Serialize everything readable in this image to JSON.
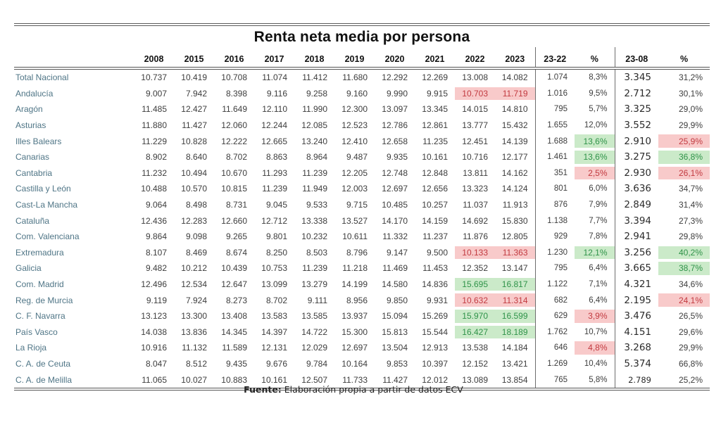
{
  "title": "Renta neta media por persona",
  "footer": {
    "label": "Fuente:",
    "text": " Elaboración propia a partir de datos ECV"
  },
  "colors": {
    "label_text": "#4f7586",
    "highlight_red_bg": "#f8caca",
    "highlight_red_text": "#c23a40",
    "highlight_green_bg": "#cbeac9",
    "highlight_green_text": "#2f9349"
  },
  "chart_data": {
    "type": "table",
    "columns": [
      "",
      "2008",
      "2015",
      "2016",
      "2017",
      "2018",
      "2019",
      "2020",
      "2021",
      "2022",
      "2023",
      "23-22",
      "%",
      "23-08",
      "%"
    ],
    "rows": [
      {
        "label": "Total Nacional",
        "years": [
          "10.737",
          "10.419",
          "10.708",
          "11.074",
          "11.412",
          "11.680",
          "12.292",
          "12.269",
          "13.008",
          "14.082"
        ],
        "diff_23_22": "1.074",
        "pct_23_22": "8,3%",
        "diff_23_08": "3.345",
        "pct_23_08": "31,2%",
        "hl_years": null,
        "hl_pct1": null,
        "hl_pct2": null,
        "small_23_08": false
      },
      {
        "label": "Andalucía",
        "years": [
          "9.007",
          "7.942",
          "8.398",
          "9.116",
          "9.258",
          "9.160",
          "9.990",
          "9.915",
          "10.703",
          "11.719"
        ],
        "diff_23_22": "1.016",
        "pct_23_22": "9,5%",
        "diff_23_08": "2.712",
        "pct_23_08": "30,1%",
        "hl_years": "red",
        "hl_pct1": null,
        "hl_pct2": null,
        "small_23_08": false
      },
      {
        "label": "Aragón",
        "years": [
          "11.485",
          "12.427",
          "11.649",
          "12.110",
          "11.990",
          "12.300",
          "13.097",
          "13.345",
          "14.015",
          "14.810"
        ],
        "diff_23_22": "795",
        "pct_23_22": "5,7%",
        "diff_23_08": "3.325",
        "pct_23_08": "29,0%",
        "hl_years": null,
        "hl_pct1": null,
        "hl_pct2": null,
        "small_23_08": false
      },
      {
        "label": "Asturias",
        "years": [
          "11.880",
          "11.427",
          "12.060",
          "12.244",
          "12.085",
          "12.523",
          "12.786",
          "12.861",
          "13.777",
          "15.432"
        ],
        "diff_23_22": "1.655",
        "pct_23_22": "12,0%",
        "diff_23_08": "3.552",
        "pct_23_08": "29,9%",
        "hl_years": null,
        "hl_pct1": null,
        "hl_pct2": null,
        "small_23_08": false
      },
      {
        "label": "Illes Balears",
        "years": [
          "11.229",
          "10.828",
          "12.222",
          "12.665",
          "13.240",
          "12.410",
          "12.658",
          "11.235",
          "12.451",
          "14.139"
        ],
        "diff_23_22": "1.688",
        "pct_23_22": "13,6%",
        "diff_23_08": "2.910",
        "pct_23_08": "25,9%",
        "hl_years": null,
        "hl_pct1": "green",
        "hl_pct2": "red",
        "small_23_08": false
      },
      {
        "label": "Canarias",
        "years": [
          "8.902",
          "8.640",
          "8.702",
          "8.863",
          "8.964",
          "9.487",
          "9.935",
          "10.161",
          "10.716",
          "12.177"
        ],
        "diff_23_22": "1.461",
        "pct_23_22": "13,6%",
        "diff_23_08": "3.275",
        "pct_23_08": "36,8%",
        "hl_years": null,
        "hl_pct1": "green",
        "hl_pct2": "green",
        "small_23_08": false
      },
      {
        "label": "Cantabria",
        "years": [
          "11.232",
          "10.494",
          "10.670",
          "11.293",
          "11.239",
          "12.205",
          "12.748",
          "12.848",
          "13.811",
          "14.162"
        ],
        "diff_23_22": "351",
        "pct_23_22": "2,5%",
        "diff_23_08": "2.930",
        "pct_23_08": "26,1%",
        "hl_years": null,
        "hl_pct1": "red",
        "hl_pct2": "red",
        "small_23_08": false
      },
      {
        "label": "Castilla y León",
        "years": [
          "10.488",
          "10.570",
          "10.815",
          "11.239",
          "11.949",
          "12.003",
          "12.697",
          "12.656",
          "13.323",
          "14.124"
        ],
        "diff_23_22": "801",
        "pct_23_22": "6,0%",
        "diff_23_08": "3.636",
        "pct_23_08": "34,7%",
        "hl_years": null,
        "hl_pct1": null,
        "hl_pct2": null,
        "small_23_08": false
      },
      {
        "label": "Cast-La Mancha",
        "years": [
          "9.064",
          "8.498",
          "8.731",
          "9.045",
          "9.533",
          "9.715",
          "10.485",
          "10.257",
          "11.037",
          "11.913"
        ],
        "diff_23_22": "876",
        "pct_23_22": "7,9%",
        "diff_23_08": "2.849",
        "pct_23_08": "31,4%",
        "hl_years": null,
        "hl_pct1": null,
        "hl_pct2": null,
        "small_23_08": false
      },
      {
        "label": "Cataluña",
        "years": [
          "12.436",
          "12.283",
          "12.660",
          "12.712",
          "13.338",
          "13.527",
          "14.170",
          "14.159",
          "14.692",
          "15.830"
        ],
        "diff_23_22": "1.138",
        "pct_23_22": "7,7%",
        "diff_23_08": "3.394",
        "pct_23_08": "27,3%",
        "hl_years": null,
        "hl_pct1": null,
        "hl_pct2": null,
        "small_23_08": false
      },
      {
        "label": "Com. Valenciana",
        "years": [
          "9.864",
          "9.098",
          "9.265",
          "9.801",
          "10.232",
          "10.611",
          "11.332",
          "11.237",
          "11.876",
          "12.805"
        ],
        "diff_23_22": "929",
        "pct_23_22": "7,8%",
        "diff_23_08": "2.941",
        "pct_23_08": "29,8%",
        "hl_years": null,
        "hl_pct1": null,
        "hl_pct2": null,
        "small_23_08": false
      },
      {
        "label": "Extremadura",
        "years": [
          "8.107",
          "8.469",
          "8.674",
          "8.250",
          "8.503",
          "8.796",
          "9.147",
          "9.500",
          "10.133",
          "11.363"
        ],
        "diff_23_22": "1.230",
        "pct_23_22": "12,1%",
        "diff_23_08": "3.256",
        "pct_23_08": "40,2%",
        "hl_years": "red",
        "hl_pct1": "green",
        "hl_pct2": "green",
        "small_23_08": false
      },
      {
        "label": "Galicia",
        "years": [
          "9.482",
          "10.212",
          "10.439",
          "10.753",
          "11.239",
          "11.218",
          "11.469",
          "11.453",
          "12.352",
          "13.147"
        ],
        "diff_23_22": "795",
        "pct_23_22": "6,4%",
        "diff_23_08": "3.665",
        "pct_23_08": "38,7%",
        "hl_years": null,
        "hl_pct1": null,
        "hl_pct2": "green",
        "small_23_08": false
      },
      {
        "label": "Com. Madrid",
        "years": [
          "12.496",
          "12.534",
          "12.647",
          "13.099",
          "13.279",
          "14.199",
          "14.580",
          "14.836",
          "15.695",
          "16.817"
        ],
        "diff_23_22": "1.122",
        "pct_23_22": "7,1%",
        "diff_23_08": "4.321",
        "pct_23_08": "34,6%",
        "hl_years": "green",
        "hl_pct1": null,
        "hl_pct2": null,
        "small_23_08": false
      },
      {
        "label": "Reg. de Murcia",
        "years": [
          "9.119",
          "7.924",
          "8.273",
          "8.702",
          "9.111",
          "8.956",
          "9.850",
          "9.931",
          "10.632",
          "11.314"
        ],
        "diff_23_22": "682",
        "pct_23_22": "6,4%",
        "diff_23_08": "2.195",
        "pct_23_08": "24,1%",
        "hl_years": "red",
        "hl_pct1": null,
        "hl_pct2": "red",
        "small_23_08": false
      },
      {
        "label": "C. F. Navarra",
        "years": [
          "13.123",
          "13.300",
          "13.408",
          "13.583",
          "13.585",
          "13.937",
          "15.094",
          "15.269",
          "15.970",
          "16.599"
        ],
        "diff_23_22": "629",
        "pct_23_22": "3,9%",
        "diff_23_08": "3.476",
        "pct_23_08": "26,5%",
        "hl_years": "green",
        "hl_pct1": "red",
        "hl_pct2": null,
        "small_23_08": false
      },
      {
        "label": "País Vasco",
        "years": [
          "14.038",
          "13.836",
          "14.345",
          "14.397",
          "14.722",
          "15.300",
          "15.813",
          "15.544",
          "16.427",
          "18.189"
        ],
        "diff_23_22": "1.762",
        "pct_23_22": "10,7%",
        "diff_23_08": "4.151",
        "pct_23_08": "29,6%",
        "hl_years": "green",
        "hl_pct1": null,
        "hl_pct2": null,
        "small_23_08": false
      },
      {
        "label": "La Rioja",
        "years": [
          "10.916",
          "11.132",
          "11.589",
          "12.131",
          "12.029",
          "12.697",
          "13.504",
          "12.913",
          "13.538",
          "14.184"
        ],
        "diff_23_22": "646",
        "pct_23_22": "4,8%",
        "diff_23_08": "3.268",
        "pct_23_08": "29,9%",
        "hl_years": null,
        "hl_pct1": "red",
        "hl_pct2": null,
        "small_23_08": false
      },
      {
        "label": "C. A. de Ceuta",
        "years": [
          "8.047",
          "8.512",
          "9.435",
          "9.676",
          "9.784",
          "10.164",
          "9.853",
          "10.397",
          "12.152",
          "13.421"
        ],
        "diff_23_22": "1.269",
        "pct_23_22": "10,4%",
        "diff_23_08": "5.374",
        "pct_23_08": "66,8%",
        "hl_years": null,
        "hl_pct1": null,
        "hl_pct2": null,
        "small_23_08": false
      },
      {
        "label": "C. A. de Melilla",
        "years": [
          "11.065",
          "10.027",
          "10.883",
          "10.161",
          "12.507",
          "11.733",
          "11.427",
          "12.012",
          "13.089",
          "13.854"
        ],
        "diff_23_22": "765",
        "pct_23_22": "5,8%",
        "diff_23_08": "2.789",
        "pct_23_08": "25,2%",
        "hl_years": null,
        "hl_pct1": null,
        "hl_pct2": null,
        "small_23_08": true
      }
    ]
  }
}
